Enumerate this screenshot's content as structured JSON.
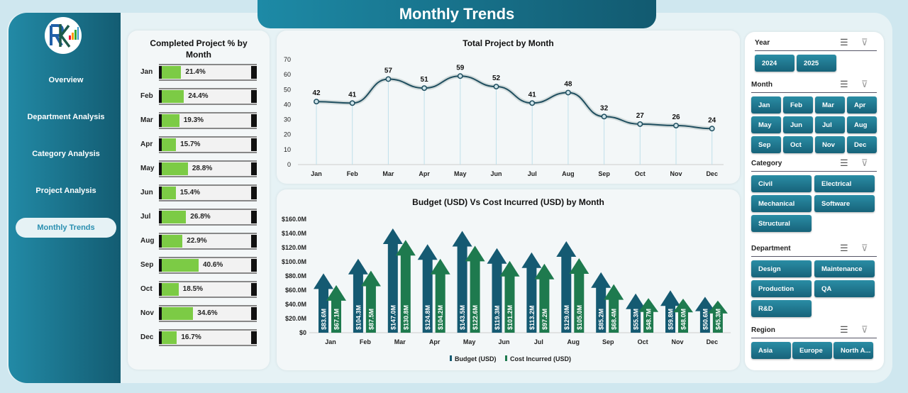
{
  "header": {
    "title": "Monthly Trends"
  },
  "sidebar": {
    "logo_text": "RK",
    "items": [
      {
        "label": "Overview"
      },
      {
        "label": "Department Analysis"
      },
      {
        "label": "Category Analysis"
      },
      {
        "label": "Project Analysis"
      },
      {
        "label": "Monthly Trends",
        "active": true
      }
    ]
  },
  "completed": {
    "title": "Completed Project % by Month",
    "rows": [
      {
        "month": "Jan",
        "value": 21.4,
        "label": "21.4%"
      },
      {
        "month": "Feb",
        "value": 24.4,
        "label": "24.4%"
      },
      {
        "month": "Mar",
        "value": 19.3,
        "label": "19.3%"
      },
      {
        "month": "Apr",
        "value": 15.7,
        "label": "15.7%"
      },
      {
        "month": "May",
        "value": 28.8,
        "label": "28.8%"
      },
      {
        "month": "Jun",
        "value": 15.4,
        "label": "15.4%"
      },
      {
        "month": "Jul",
        "value": 26.8,
        "label": "26.8%"
      },
      {
        "month": "Aug",
        "value": 22.9,
        "label": "22.9%"
      },
      {
        "month": "Sep",
        "value": 40.6,
        "label": "40.6%"
      },
      {
        "month": "Oct",
        "value": 18.5,
        "label": "18.5%"
      },
      {
        "month": "Nov",
        "value": 34.6,
        "label": "34.6%"
      },
      {
        "month": "Dec",
        "value": 16.7,
        "label": "16.7%"
      }
    ]
  },
  "chart_data": [
    {
      "type": "line",
      "title": "Total Project by Month",
      "categories": [
        "Jan",
        "Feb",
        "Mar",
        "Apr",
        "May",
        "Jun",
        "Jul",
        "Aug",
        "Sep",
        "Oct",
        "Nov",
        "Dec"
      ],
      "values": [
        42,
        41,
        57,
        51,
        59,
        52,
        41,
        48,
        32,
        27,
        26,
        24
      ],
      "ylim": [
        0,
        70
      ],
      "yticks": [
        0,
        10,
        20,
        30,
        40,
        50,
        60,
        70
      ],
      "grid": false,
      "color": "#1f4e5f"
    },
    {
      "type": "bar",
      "title": "Budget (USD) Vs Cost Incurred (USD) by Month",
      "categories": [
        "Jan",
        "Feb",
        "Mar",
        "Apr",
        "May",
        "Jun",
        "Jul",
        "Aug",
        "Sep",
        "Oct",
        "Nov",
        "Dec"
      ],
      "ylim": [
        0,
        160
      ],
      "yticks": [
        "$0",
        "$20.0M",
        "$40.0M",
        "$60.0M",
        "$80.0M",
        "$100.0M",
        "$120.0M",
        "$140.0M",
        "$160.0M"
      ],
      "legend": "bottom",
      "series": [
        {
          "name": "Budget (USD)",
          "color": "#155a72",
          "values": [
            83.6,
            104.3,
            147.0,
            124.8,
            143.5,
            119.3,
            113.2,
            129.0,
            85.2,
            55.3,
            59.8,
            50.6
          ],
          "labels": [
            "$83.6M",
            "$104.3M",
            "$147.0M",
            "$124.8M",
            "$143.5M",
            "$119.3M",
            "$113.2M",
            "$129.0M",
            "$85.2M",
            "$55.3M",
            "$59.8M",
            "$50.6M"
          ]
        },
        {
          "name": "Cost Incurred (USD)",
          "color": "#1e7a4e",
          "values": [
            67.1,
            87.5,
            130.8,
            104.2,
            122.6,
            101.2,
            97.2,
            105.0,
            68.4,
            48.7,
            48.0,
            45.3
          ],
          "labels": [
            "$67.1M",
            "$87.5M",
            "$130.8M",
            "$104.2M",
            "$122.6M",
            "$101.2M",
            "$97.2M",
            "$105.0M",
            "$68.4M",
            "$48.7M",
            "$48.0M",
            "$45.3M"
          ]
        }
      ]
    }
  ],
  "slicers": [
    {
      "title": "Year",
      "items": [
        "2024",
        "2025"
      ]
    },
    {
      "title": "Month",
      "items": [
        "Jan",
        "Feb",
        "Mar",
        "Apr",
        "May",
        "Jun",
        "Jul",
        "Aug",
        "Sep",
        "Oct",
        "Nov",
        "Dec"
      ]
    },
    {
      "title": "Category",
      "items": [
        "Civil",
        "Electrical",
        "Mechanical",
        "Software",
        "Structural"
      ]
    },
    {
      "title": "Department",
      "items": [
        "Design",
        "Maintenance",
        "Production",
        "QA",
        "R&D"
      ]
    },
    {
      "title": "Region",
      "items": [
        "Asia",
        "Europe",
        "North A..."
      ]
    }
  ]
}
